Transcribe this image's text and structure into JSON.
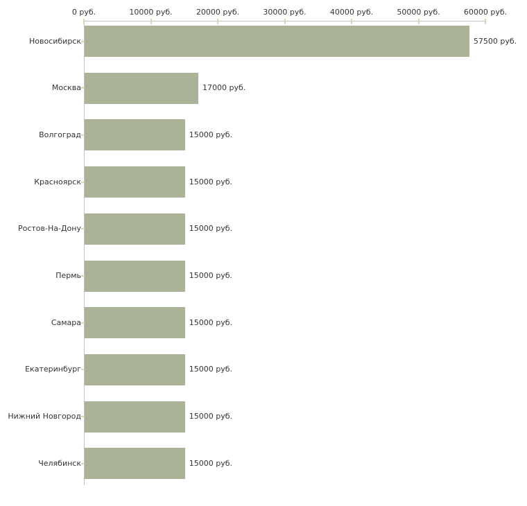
{
  "chart_data": {
    "type": "bar",
    "orientation": "horizontal",
    "title": "",
    "xlabel": "",
    "ylabel": "",
    "unit": "руб.",
    "xlim": [
      0,
      60000
    ],
    "grid": false,
    "legend": false,
    "categories": [
      "Новосибирск",
      "Москва",
      "Волгоград",
      "Красноярск",
      "Ростов-На-Дону",
      "Пермь",
      "Самара",
      "Екатеринбург",
      "Нижний Новгород",
      "Челябинск"
    ],
    "values": [
      57500,
      17000,
      15000,
      15000,
      15000,
      15000,
      15000,
      15000,
      15000,
      15000
    ],
    "value_labels": [
      "57500 руб.",
      "17000 руб.",
      "15000 руб.",
      "15000 руб.",
      "15000 руб.",
      "15000 руб.",
      "15000 руб.",
      "15000 руб.",
      "15000 руб.",
      "15000 руб."
    ],
    "x_ticks": [
      {
        "value": 0,
        "label": "0 руб."
      },
      {
        "value": 10000,
        "label": "10000 руб."
      },
      {
        "value": 20000,
        "label": "20000 руб."
      },
      {
        "value": 30000,
        "label": "30000 руб."
      },
      {
        "value": 40000,
        "label": "40000 руб."
      },
      {
        "value": 50000,
        "label": "50000 руб."
      },
      {
        "value": 60000,
        "label": "60000 руб."
      }
    ],
    "colors": {
      "bar": "#aab397",
      "axis": "#c0c0c0",
      "tick": "#d6d9ab",
      "text": "#333333",
      "background": "#ffffff"
    }
  }
}
